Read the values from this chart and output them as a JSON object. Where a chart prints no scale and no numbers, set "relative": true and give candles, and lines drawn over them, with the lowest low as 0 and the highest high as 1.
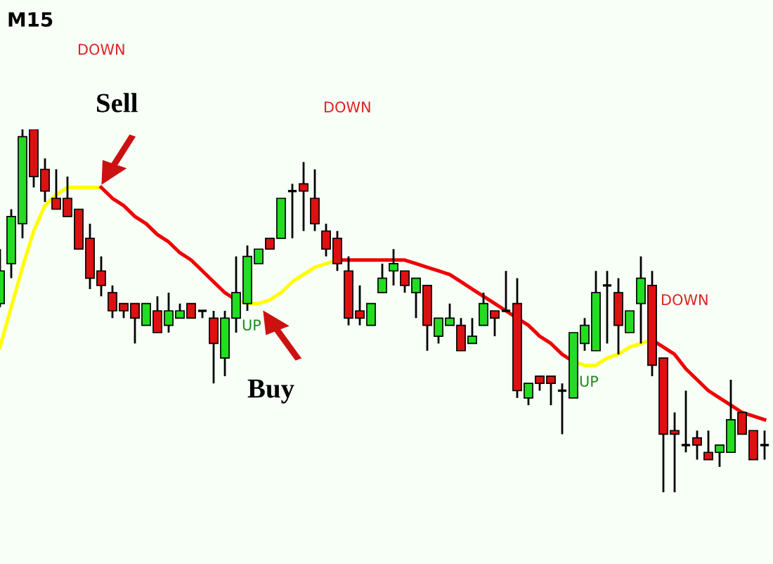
{
  "chart_data": {
    "type": "candlestick",
    "relative": true,
    "categories": [
      null,
      null,
      null,
      null,
      null,
      null,
      null,
      null,
      null,
      null,
      null,
      null,
      null,
      null,
      null,
      null,
      null,
      null,
      null,
      null,
      null,
      null,
      null,
      null,
      null,
      null,
      null,
      null,
      null,
      null,
      null,
      null,
      null,
      null,
      null,
      null,
      null,
      null,
      null,
      null,
      null,
      null,
      null,
      null,
      null,
      null,
      null,
      null,
      null,
      null,
      null,
      null,
      null,
      null,
      null,
      null,
      null,
      null,
      null,
      null,
      null,
      null,
      null,
      null,
      null,
      null,
      null,
      null,
      null
    ],
    "ohlc": [
      [
        0.52,
        0.67,
        0.51,
        0.61
      ],
      [
        0.63,
        0.78,
        0.59,
        0.76
      ],
      [
        0.74,
        1.0,
        0.7,
        0.98
      ],
      [
        1.0,
        1.0,
        0.84,
        0.87
      ],
      [
        0.89,
        0.92,
        0.8,
        0.83
      ],
      [
        0.81,
        0.89,
        0.78,
        0.78
      ],
      [
        0.81,
        0.87,
        0.76,
        0.76
      ],
      [
        0.78,
        0.78,
        0.67,
        0.67
      ],
      [
        0.7,
        0.74,
        0.56,
        0.59
      ],
      [
        0.61,
        0.65,
        0.54,
        0.57
      ],
      [
        0.55,
        0.57,
        0.48,
        0.5
      ],
      [
        0.52,
        0.52,
        0.48,
        0.5
      ],
      [
        0.52,
        0.52,
        0.41,
        0.48
      ],
      [
        0.46,
        0.52,
        0.46,
        0.52
      ],
      [
        0.5,
        0.54,
        0.44,
        0.44
      ],
      [
        0.46,
        0.55,
        0.44,
        0.5
      ],
      [
        0.48,
        0.52,
        0.48,
        0.5
      ],
      [
        0.52,
        0.52,
        0.48,
        0.48
      ],
      [
        0.5,
        0.5,
        0.48,
        0.5
      ],
      [
        0.48,
        0.5,
        0.3,
        0.41
      ],
      [
        0.37,
        0.5,
        0.32,
        0.48
      ],
      [
        0.48,
        0.65,
        0.44,
        0.55
      ],
      [
        0.52,
        0.68,
        0.5,
        0.65
      ],
      [
        0.63,
        0.67,
        0.63,
        0.67
      ],
      [
        0.7,
        0.7,
        0.67,
        0.67
      ],
      [
        0.7,
        0.81,
        0.7,
        0.81
      ],
      [
        0.83,
        0.85,
        0.7,
        0.83
      ],
      [
        0.85,
        0.91,
        0.72,
        0.83
      ],
      [
        0.81,
        0.89,
        0.72,
        0.74
      ],
      [
        0.72,
        0.74,
        0.65,
        0.67
      ],
      [
        0.7,
        0.72,
        0.61,
        0.63
      ],
      [
        0.61,
        0.65,
        0.46,
        0.48
      ],
      [
        0.5,
        0.57,
        0.46,
        0.48
      ],
      [
        0.46,
        0.52,
        0.46,
        0.52
      ],
      [
        0.55,
        0.63,
        0.55,
        0.59
      ],
      [
        0.61,
        0.67,
        0.57,
        0.63
      ],
      [
        0.61,
        0.61,
        0.55,
        0.57
      ],
      [
        0.55,
        0.59,
        0.48,
        0.59
      ],
      [
        0.57,
        0.57,
        0.39,
        0.46
      ],
      [
        0.43,
        0.48,
        0.41,
        0.48
      ],
      [
        0.46,
        0.52,
        0.46,
        0.48
      ],
      [
        0.46,
        0.48,
        0.39,
        0.39
      ],
      [
        0.41,
        0.48,
        0.41,
        0.43
      ],
      [
        0.46,
        0.55,
        0.46,
        0.52
      ],
      [
        0.5,
        0.5,
        0.43,
        0.48
      ],
      [
        0.5,
        0.61,
        0.5,
        0.5
      ],
      [
        0.52,
        0.59,
        0.26,
        0.28
      ],
      [
        0.26,
        0.3,
        0.24,
        0.3
      ],
      [
        0.32,
        0.32,
        0.28,
        0.3
      ],
      [
        0.32,
        0.32,
        0.24,
        0.3
      ],
      [
        0.28,
        0.3,
        0.16,
        0.28
      ],
      [
        0.26,
        0.44,
        0.26,
        0.44
      ],
      [
        0.41,
        0.48,
        0.39,
        0.46
      ],
      [
        0.39,
        0.61,
        0.39,
        0.55
      ],
      [
        0.57,
        0.61,
        0.41,
        0.57
      ],
      [
        0.55,
        0.59,
        0.38,
        0.46
      ],
      [
        0.44,
        0.5,
        0.44,
        0.5
      ],
      [
        0.52,
        0.65,
        0.41,
        0.59
      ],
      [
        0.57,
        0.61,
        0.32,
        0.35
      ],
      [
        0.37,
        0.37,
        0.0,
        0.16
      ],
      [
        0.17,
        0.22,
        0.0,
        0.16
      ],
      [
        0.13,
        0.28,
        0.11,
        0.13
      ],
      [
        0.15,
        0.17,
        0.09,
        0.13
      ],
      [
        0.11,
        0.17,
        0.09,
        0.09
      ],
      [
        0.11,
        0.13,
        0.07,
        0.13
      ],
      [
        0.11,
        0.31,
        0.11,
        0.2
      ],
      [
        0.22,
        0.22,
        0.16,
        0.16
      ],
      [
        0.17,
        0.17,
        0.09,
        0.09
      ],
      [
        0.13,
        0.17,
        0.09,
        0.13
      ]
    ],
    "colors": [
      "#22dd22",
      "#22dd22",
      "#22dd22",
      "#dd1111",
      "#dd1111",
      "#dd1111",
      "#dd1111",
      "#dd1111",
      "#dd1111",
      "#dd1111",
      "#dd1111",
      "#dd1111",
      "#dd1111",
      "#22dd22",
      "#dd1111",
      "#22dd22",
      "#22dd22",
      "#dd1111",
      "#000000",
      "#dd1111",
      "#22dd22",
      "#22dd22",
      "#22dd22",
      "#22dd22",
      "#dd1111",
      "#22dd22",
      "#000000",
      "#dd1111",
      "#dd1111",
      "#dd1111",
      "#dd1111",
      "#dd1111",
      "#dd1111",
      "#22dd22",
      "#22dd22",
      "#22dd22",
      "#dd1111",
      "#22dd22",
      "#dd1111",
      "#22dd22",
      "#22dd22",
      "#dd1111",
      "#22dd22",
      "#22dd22",
      "#dd1111",
      "#000000",
      "#dd1111",
      "#22dd22",
      "#dd1111",
      "#dd1111",
      "#000000",
      "#22dd22",
      "#22dd22",
      "#22dd22",
      "#000000",
      "#dd1111",
      "#22dd22",
      "#22dd22",
      "#dd1111",
      "#dd1111",
      "#dd1111",
      "#000000",
      "#dd1111",
      "#dd1111",
      "#22dd22",
      "#22dd22",
      "#dd1111",
      "#dd1111",
      "#000000"
    ],
    "series": [
      {
        "type": "line",
        "color": "#ffff00",
        "values": [
          0.4,
          0.51,
          0.62,
          0.72,
          0.79,
          0.82,
          0.84,
          0.84,
          0.84,
          0.84,
          null,
          null,
          null,
          null,
          null,
          null,
          null,
          null,
          null,
          null,
          null,
          0.53,
          0.52,
          0.52,
          0.53,
          0.55,
          0.58,
          0.6,
          0.62,
          0.63,
          0.64,
          null,
          null,
          null,
          null,
          null,
          null,
          null,
          null,
          null,
          null,
          null,
          null,
          null,
          null,
          null,
          null,
          null,
          null,
          null,
          null,
          0.36,
          0.35,
          0.35,
          0.37,
          0.38,
          0.4,
          0.41,
          0.42,
          null,
          null,
          null,
          null,
          null,
          null,
          null,
          null,
          null,
          null
        ]
      },
      {
        "type": "line",
        "color": "#ee0000",
        "values": [
          null,
          null,
          null,
          null,
          null,
          null,
          null,
          null,
          null,
          0.84,
          0.81,
          0.79,
          0.76,
          0.74,
          0.71,
          0.69,
          0.66,
          0.64,
          0.61,
          0.58,
          0.55,
          0.53,
          null,
          null,
          null,
          null,
          null,
          null,
          null,
          null,
          0.64,
          0.64,
          0.64,
          0.64,
          0.64,
          0.64,
          0.64,
          0.63,
          0.62,
          0.61,
          0.6,
          0.58,
          0.56,
          0.54,
          0.52,
          0.5,
          0.48,
          0.46,
          0.43,
          0.41,
          0.38,
          0.36,
          null,
          null,
          null,
          null,
          null,
          null,
          0.42,
          0.4,
          0.38,
          0.34,
          0.31,
          0.28,
          0.26,
          0.24,
          0.22,
          0.21,
          0.2
        ]
      }
    ],
    "annotations": [
      "M15",
      "DOWN",
      "DOWN",
      "DOWN",
      "UP",
      "UP",
      "Sell",
      "Buy"
    ]
  }
}
